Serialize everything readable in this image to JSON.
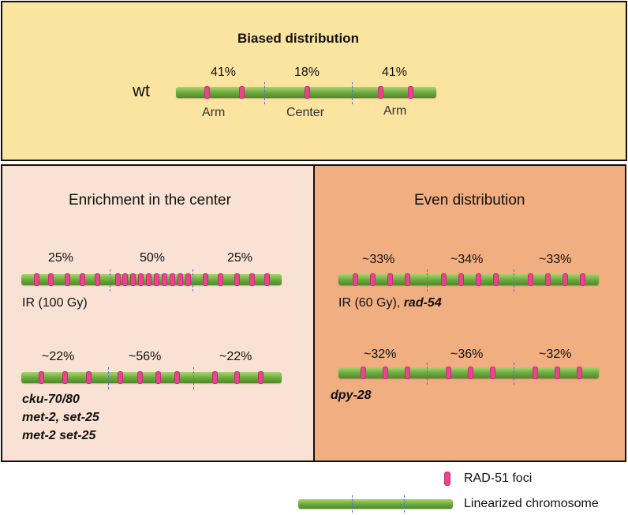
{
  "biased": {
    "title": "Biased distribution",
    "genotype": "wt",
    "percents": [
      "41%",
      "18%",
      "41%"
    ],
    "region_labels": [
      "Arm",
      "Center",
      "Arm"
    ]
  },
  "enrichment": {
    "title": "Enrichment in the center",
    "row1": {
      "percents": [
        "25%",
        "50%",
        "25%"
      ],
      "label": "IR (100 Gy)"
    },
    "row2": {
      "percents": [
        "~22%",
        "~56%",
        "~22%"
      ],
      "labels": [
        "cku-70/80",
        "met-2, set-25",
        "met-2 set-25"
      ]
    }
  },
  "even": {
    "title": "Even distribution",
    "row1": {
      "percents": [
        "~33%",
        "~34%",
        "~33%"
      ],
      "label_plain": "IR (60 Gy), ",
      "label_italic": "rad-54"
    },
    "row2": {
      "percents": [
        "~32%",
        "~36%",
        "~32%"
      ],
      "label": "dpy-28"
    }
  },
  "legend": {
    "foci_label": "RAD-51 foci",
    "chromosome_label": "Linearized chromosome"
  },
  "colors": {
    "biased_bg": "#fbe3a0",
    "enrichment_bg": "#f9e2d4",
    "even_bg": "#f0ae81",
    "focus": "#e8458c",
    "chromosome": "#6aa83a",
    "divider": "#5577bb"
  }
}
